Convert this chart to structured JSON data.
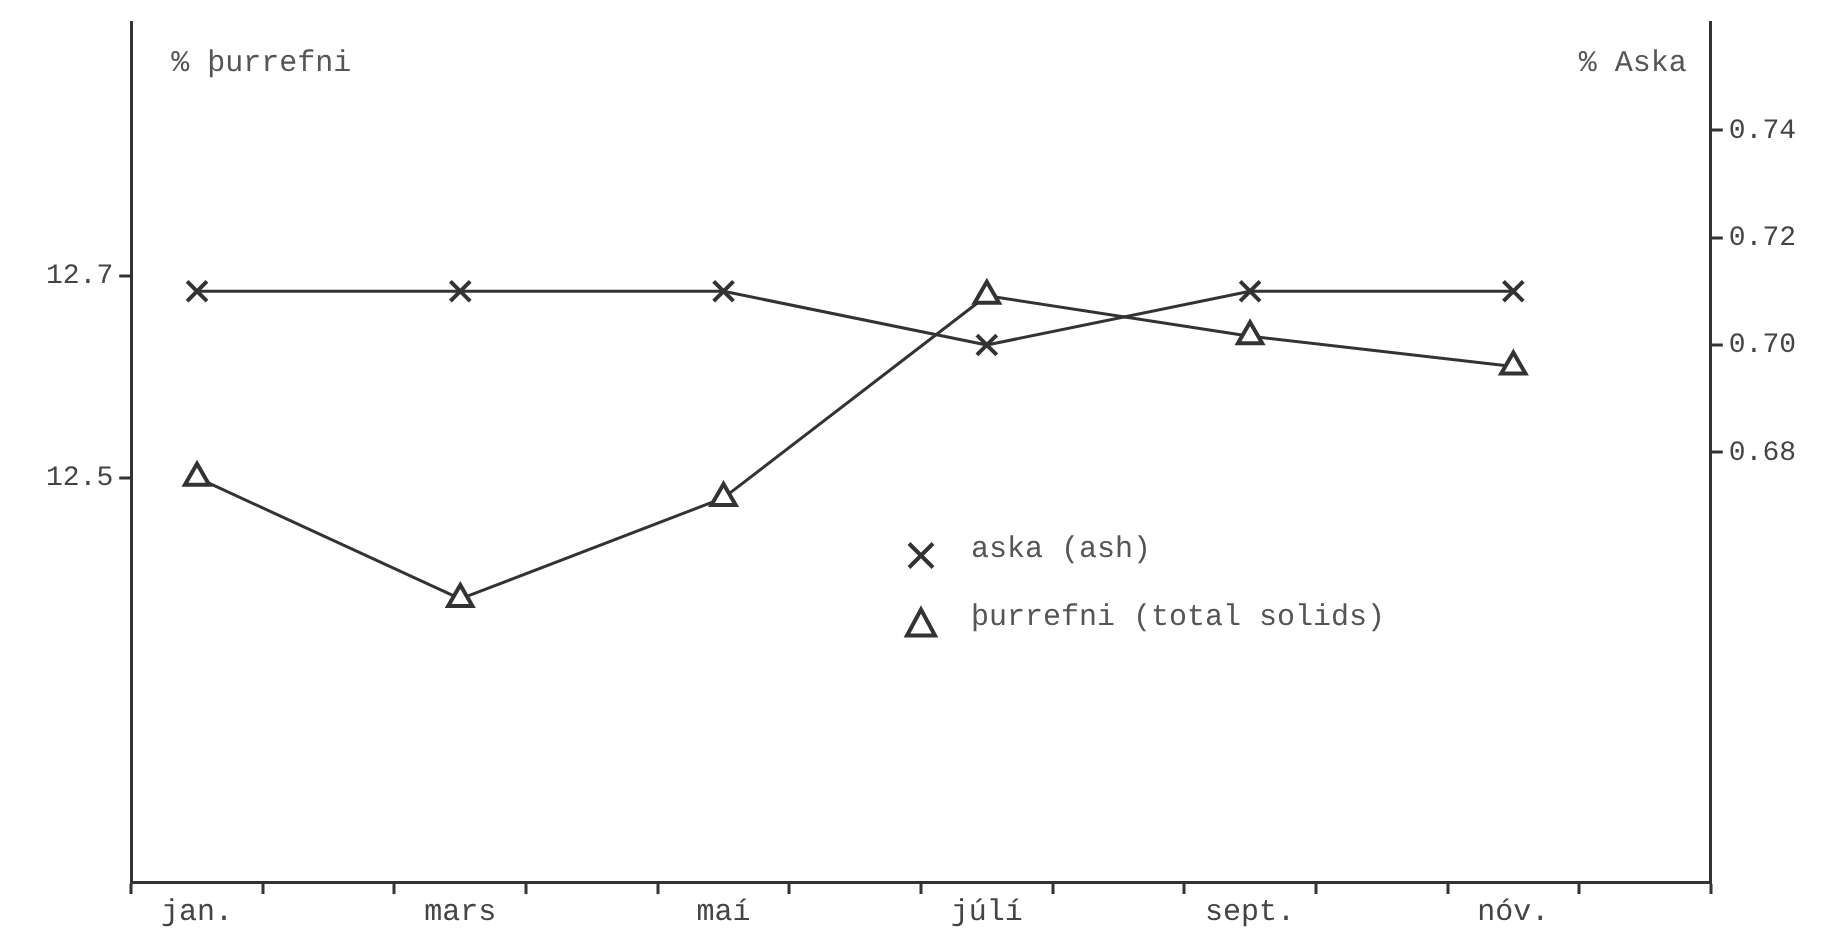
{
  "chart_data": {
    "type": "line",
    "categories": [
      "jan.",
      null,
      "mars",
      null,
      "maí",
      null,
      "júlí",
      null,
      "sept.",
      null,
      "nóv.",
      null
    ],
    "ylabel": "% þurrefni",
    "y2label": "% Aska",
    "ylim": [
      12.1,
      12.95
    ],
    "yticks": [
      12.5,
      12.7
    ],
    "y2lim": [
      0.6,
      0.76
    ],
    "y2ticks": [
      0.68,
      {
        "value": 0.7,
        "label": "0.70"
      },
      0.72,
      0.74
    ],
    "grid": false,
    "legend": "bottom",
    "line_style": "solid",
    "series": [
      {
        "name": "aska (ash)",
        "color": "#333333",
        "axis": "y2",
        "marker": "cross",
        "values": [
          0.71,
          null,
          0.71,
          null,
          0.71,
          null,
          0.7,
          null,
          0.71,
          null,
          0.71,
          null
        ]
      },
      {
        "name": "þurrefni (total solids)",
        "color": "#333333",
        "marker": "triangle",
        "values": [
          12.5,
          null,
          12.38,
          null,
          12.48,
          null,
          12.68,
          null,
          12.64,
          null,
          12.61,
          null
        ]
      }
    ]
  }
}
